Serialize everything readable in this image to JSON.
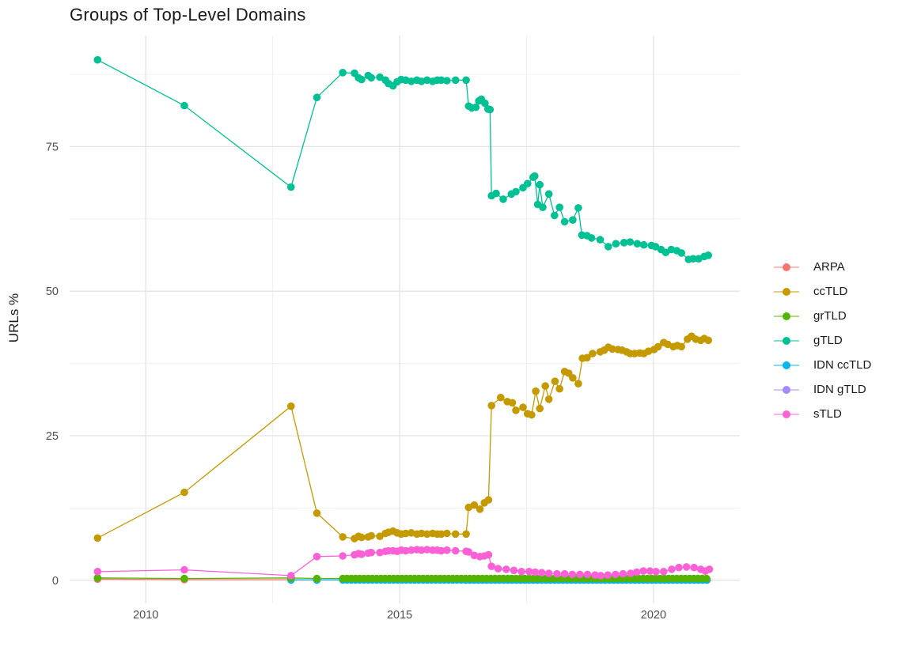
{
  "chart_data": {
    "type": "line",
    "title": "Groups of Top-Level Domains",
    "xlabel": "",
    "ylabel": "URLs %",
    "xlim": [
      2008.5,
      2021.7
    ],
    "ylim": [
      -4,
      94.2
    ],
    "grid": true,
    "legend_position": "right",
    "x_ticks": [
      {
        "value": 2010,
        "label": "2010"
      },
      {
        "value": 2015,
        "label": "2015"
      },
      {
        "value": 2020,
        "label": "2020"
      }
    ],
    "x_minor_ticks": [
      2012.5,
      2017.5
    ],
    "y_ticks": [
      {
        "value": 0,
        "label": "0"
      },
      {
        "value": 25,
        "label": "25"
      },
      {
        "value": 50,
        "label": "50"
      },
      {
        "value": 75,
        "label": "75"
      }
    ],
    "y_minor_ticks": [
      12.5,
      37.5,
      62.5,
      87.5
    ],
    "style": {
      "grid_major": "#e3e3e3",
      "grid_minor": "#f0f0f0",
      "tick_text": "#4d4d4d",
      "title_text": "#191919",
      "marker_radius": 4.8,
      "line_width": 1.3
    },
    "draw_order": [
      "ARPA",
      "IDN gTLD",
      "IDN ccTLD",
      "grTLD",
      "ccTLD",
      "gTLD",
      "sTLD"
    ],
    "series": [
      {
        "name": "ARPA",
        "color": "#F8766D",
        "points": [
          [
            2009.05,
            0.2
          ],
          [
            2010.76,
            0.1
          ],
          [
            2012.86,
            0.1
          ],
          [
            2013.37,
            0.05
          ]
        ]
      },
      {
        "name": "ccTLD",
        "color": "#C49A00",
        "points": [
          [
            2009.05,
            7.3
          ],
          [
            2010.76,
            15.2
          ],
          [
            2012.86,
            30.1
          ],
          [
            2013.37,
            11.6
          ],
          [
            2013.88,
            7.5
          ],
          [
            2014.11,
            7.2
          ],
          [
            2014.19,
            7.6
          ],
          [
            2014.25,
            7.4
          ],
          [
            2014.38,
            7.5
          ],
          [
            2014.44,
            7.7
          ],
          [
            2014.61,
            7.6
          ],
          [
            2014.72,
            8.1
          ],
          [
            2014.78,
            8.3
          ],
          [
            2014.87,
            8.5
          ],
          [
            2014.95,
            8.2
          ],
          [
            2015.03,
            8.0
          ],
          [
            2015.12,
            8.1
          ],
          [
            2015.23,
            8.2
          ],
          [
            2015.34,
            8.0
          ],
          [
            2015.43,
            8.1
          ],
          [
            2015.54,
            8.0
          ],
          [
            2015.65,
            8.1
          ],
          [
            2015.74,
            8.0
          ],
          [
            2015.82,
            8.0
          ],
          [
            2015.93,
            8.1
          ],
          [
            2016.1,
            8.0
          ],
          [
            2016.31,
            8.0
          ],
          [
            2016.36,
            12.6
          ],
          [
            2016.47,
            13.0
          ],
          [
            2016.58,
            12.3
          ],
          [
            2016.67,
            13.4
          ],
          [
            2016.75,
            13.9
          ],
          [
            2016.81,
            30.2
          ],
          [
            2016.99,
            31.6
          ],
          [
            2017.12,
            30.9
          ],
          [
            2017.22,
            30.7
          ],
          [
            2017.29,
            29.4
          ],
          [
            2017.43,
            29.9
          ],
          [
            2017.52,
            28.8
          ],
          [
            2017.6,
            28.6
          ],
          [
            2017.68,
            32.7
          ],
          [
            2017.76,
            29.7
          ],
          [
            2017.87,
            33.6
          ],
          [
            2017.94,
            31.3
          ],
          [
            2018.06,
            34.4
          ],
          [
            2018.15,
            33.1
          ],
          [
            2018.25,
            36.1
          ],
          [
            2018.33,
            35.8
          ],
          [
            2018.41,
            35.0
          ],
          [
            2018.52,
            34.0
          ],
          [
            2018.6,
            38.4
          ],
          [
            2018.69,
            38.5
          ],
          [
            2018.8,
            39.2
          ],
          [
            2018.95,
            39.5
          ],
          [
            2019.03,
            39.8
          ],
          [
            2019.11,
            40.3
          ],
          [
            2019.19,
            40.0
          ],
          [
            2019.3,
            39.9
          ],
          [
            2019.38,
            39.8
          ],
          [
            2019.47,
            39.5
          ],
          [
            2019.54,
            39.2
          ],
          [
            2019.63,
            39.2
          ],
          [
            2019.73,
            39.3
          ],
          [
            2019.81,
            39.2
          ],
          [
            2019.9,
            39.6
          ],
          [
            2020.01,
            39.9
          ],
          [
            2020.09,
            40.4
          ],
          [
            2020.2,
            41.1
          ],
          [
            2020.28,
            40.8
          ],
          [
            2020.39,
            40.4
          ],
          [
            2020.47,
            40.6
          ],
          [
            2020.55,
            40.4
          ],
          [
            2020.67,
            41.7
          ],
          [
            2020.75,
            42.2
          ],
          [
            2020.83,
            41.7
          ],
          [
            2020.93,
            41.5
          ],
          [
            2021.0,
            41.8
          ],
          [
            2021.08,
            41.5
          ]
        ]
      },
      {
        "name": "grTLD",
        "color": "#53B400",
        "points": [
          [
            2009.05,
            0.4
          ],
          [
            2010.76,
            0.3
          ],
          [
            2012.86,
            0.4
          ],
          [
            2013.37,
            0.3
          ]
        ],
        "flat": {
          "from": 2013.88,
          "to": 2021.1,
          "step": 0.0833,
          "y": 0.3
        }
      },
      {
        "name": "gTLD",
        "color": "#00C094",
        "points": [
          [
            2009.05,
            90.0
          ],
          [
            2010.76,
            82.1
          ],
          [
            2012.86,
            68.0
          ],
          [
            2013.37,
            83.5
          ],
          [
            2013.88,
            87.8
          ],
          [
            2014.11,
            87.7
          ],
          [
            2014.19,
            86.9
          ],
          [
            2014.25,
            86.6
          ],
          [
            2014.38,
            87.3
          ],
          [
            2014.44,
            86.9
          ],
          [
            2014.61,
            87.0
          ],
          [
            2014.72,
            86.5
          ],
          [
            2014.78,
            85.9
          ],
          [
            2014.87,
            85.5
          ],
          [
            2014.95,
            86.2
          ],
          [
            2015.03,
            86.6
          ],
          [
            2015.12,
            86.5
          ],
          [
            2015.23,
            86.3
          ],
          [
            2015.34,
            86.5
          ],
          [
            2015.43,
            86.3
          ],
          [
            2015.54,
            86.5
          ],
          [
            2015.65,
            86.3
          ],
          [
            2015.74,
            86.5
          ],
          [
            2015.82,
            86.5
          ],
          [
            2015.93,
            86.4
          ],
          [
            2016.1,
            86.5
          ],
          [
            2016.31,
            86.5
          ],
          [
            2016.36,
            82.0
          ],
          [
            2016.42,
            81.7
          ],
          [
            2016.5,
            81.8
          ],
          [
            2016.56,
            82.9
          ],
          [
            2016.61,
            83.2
          ],
          [
            2016.68,
            82.5
          ],
          [
            2016.74,
            81.5
          ],
          [
            2016.78,
            81.4
          ],
          [
            2016.81,
            66.5
          ],
          [
            2016.9,
            66.9
          ],
          [
            2017.04,
            65.9
          ],
          [
            2017.2,
            66.8
          ],
          [
            2017.29,
            67.2
          ],
          [
            2017.43,
            67.9
          ],
          [
            2017.52,
            68.6
          ],
          [
            2017.63,
            69.7
          ],
          [
            2017.66,
            69.9
          ],
          [
            2017.72,
            65.0
          ],
          [
            2017.76,
            68.4
          ],
          [
            2017.82,
            64.5
          ],
          [
            2017.94,
            66.8
          ],
          [
            2018.05,
            63.1
          ],
          [
            2018.15,
            64.5
          ],
          [
            2018.25,
            62.0
          ],
          [
            2018.41,
            62.3
          ],
          [
            2018.52,
            64.4
          ],
          [
            2018.59,
            59.7
          ],
          [
            2018.69,
            59.6
          ],
          [
            2018.78,
            59.2
          ],
          [
            2018.95,
            58.9
          ],
          [
            2019.11,
            57.7
          ],
          [
            2019.26,
            58.2
          ],
          [
            2019.42,
            58.4
          ],
          [
            2019.54,
            58.5
          ],
          [
            2019.68,
            58.2
          ],
          [
            2019.81,
            58.0
          ],
          [
            2019.96,
            57.9
          ],
          [
            2020.04,
            57.7
          ],
          [
            2020.15,
            57.2
          ],
          [
            2020.24,
            56.7
          ],
          [
            2020.35,
            57.2
          ],
          [
            2020.46,
            57.0
          ],
          [
            2020.55,
            56.6
          ],
          [
            2020.69,
            55.5
          ],
          [
            2020.78,
            55.6
          ],
          [
            2020.89,
            55.6
          ],
          [
            2021.0,
            56.0
          ],
          [
            2021.08,
            56.2
          ]
        ]
      },
      {
        "name": "IDN ccTLD",
        "color": "#00B6EB",
        "points": [
          [
            2012.86,
            0.05
          ],
          [
            2013.37,
            0.05
          ]
        ],
        "flat": {
          "from": 2013.88,
          "to": 2021.1,
          "step": 0.0833,
          "y": 0.05
        }
      },
      {
        "name": "IDN gTLD",
        "color": "#A58AFF",
        "points": [],
        "flat": {
          "from": 2016.31,
          "to": 2021.1,
          "step": 0.0833,
          "y": 0.05
        }
      },
      {
        "name": "sTLD",
        "color": "#FB61D7",
        "points": [
          [
            2009.05,
            1.5
          ],
          [
            2010.76,
            1.8
          ],
          [
            2012.86,
            0.8
          ],
          [
            2013.37,
            4.1
          ],
          [
            2013.88,
            4.2
          ],
          [
            2014.11,
            4.4
          ],
          [
            2014.19,
            4.6
          ],
          [
            2014.25,
            4.5
          ],
          [
            2014.38,
            4.7
          ],
          [
            2014.44,
            4.8
          ],
          [
            2014.61,
            4.8
          ],
          [
            2014.72,
            5.0
          ],
          [
            2014.78,
            5.1
          ],
          [
            2014.87,
            5.1
          ],
          [
            2014.95,
            5.0
          ],
          [
            2015.03,
            5.2
          ],
          [
            2015.12,
            5.1
          ],
          [
            2015.23,
            5.2
          ],
          [
            2015.34,
            5.3
          ],
          [
            2015.43,
            5.2
          ],
          [
            2015.54,
            5.3
          ],
          [
            2015.65,
            5.2
          ],
          [
            2015.74,
            5.2
          ],
          [
            2015.82,
            5.1
          ],
          [
            2015.93,
            5.2
          ],
          [
            2016.1,
            5.1
          ],
          [
            2016.31,
            5.0
          ],
          [
            2016.36,
            4.9
          ],
          [
            2016.47,
            4.3
          ],
          [
            2016.58,
            4.1
          ],
          [
            2016.67,
            4.2
          ],
          [
            2016.75,
            4.4
          ],
          [
            2016.81,
            2.4
          ],
          [
            2016.94,
            2.0
          ],
          [
            2017.1,
            1.9
          ],
          [
            2017.25,
            1.7
          ],
          [
            2017.4,
            1.5
          ],
          [
            2017.55,
            1.5
          ],
          [
            2017.67,
            1.4
          ],
          [
            2017.8,
            1.3
          ],
          [
            2017.94,
            1.2
          ],
          [
            2018.1,
            1.1
          ],
          [
            2018.25,
            1.1
          ],
          [
            2018.4,
            1.0
          ],
          [
            2018.55,
            1.0
          ],
          [
            2018.7,
            1.0
          ],
          [
            2018.85,
            0.9
          ],
          [
            2018.96,
            0.8
          ],
          [
            2019.1,
            0.9
          ],
          [
            2019.25,
            1.0
          ],
          [
            2019.4,
            1.1
          ],
          [
            2019.55,
            1.2
          ],
          [
            2019.67,
            1.4
          ],
          [
            2019.8,
            1.6
          ],
          [
            2019.93,
            1.6
          ],
          [
            2020.05,
            1.5
          ],
          [
            2020.2,
            1.5
          ],
          [
            2020.36,
            1.9
          ],
          [
            2020.5,
            2.2
          ],
          [
            2020.65,
            2.3
          ],
          [
            2020.8,
            2.2
          ],
          [
            2020.93,
            1.9
          ],
          [
            2021.02,
            1.6
          ],
          [
            2021.1,
            1.9
          ]
        ]
      }
    ]
  }
}
